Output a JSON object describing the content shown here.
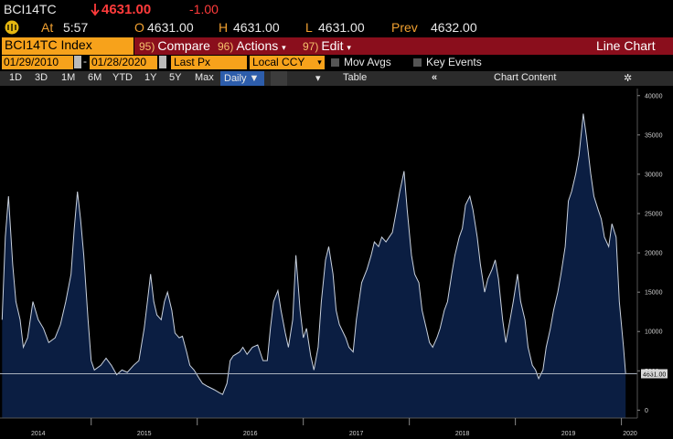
{
  "header": {
    "ticker": "BCI14TC",
    "price": "4631.00",
    "change": "-1.00",
    "time_label": "At",
    "time": "5:57",
    "open_label": "O",
    "open": "4631.00",
    "high_label": "H",
    "high": "4631.00",
    "low_label": "L",
    "low": "4631.00",
    "prev_label": "Prev",
    "prev": "4632.00"
  },
  "toolbar": {
    "security": "BCI14TC Index",
    "buttons": [
      {
        "key": "95)",
        "label": "Compare"
      },
      {
        "key": "96)",
        "label": "Actions"
      },
      {
        "key": "97)",
        "label": "Edit"
      }
    ],
    "view": "Line Chart"
  },
  "range": {
    "start": "01/29/2010",
    "separator": "-",
    "end": "01/28/2020",
    "field": "Last Px",
    "currency": "Local CCY",
    "mov_avgs": "Mov Avgs",
    "key_events": "Key Events"
  },
  "periods": [
    "1D",
    "3D",
    "1M",
    "6M",
    "YTD",
    "1Y",
    "5Y",
    "Max"
  ],
  "frequency": "Daily",
  "table": "Table",
  "chart_content": "Chart Content",
  "chart_data": {
    "type": "area",
    "x": [
      2014.16,
      2014.19,
      2014.22,
      2014.26,
      2014.29,
      2014.33,
      2014.36,
      2014.4,
      2014.45,
      2014.5,
      2014.55,
      2014.6,
      2014.66,
      2014.71,
      2014.76,
      2014.81,
      2014.84,
      2014.87,
      2014.9,
      2014.93,
      2014.97,
      2015.0,
      2015.03,
      2015.09,
      2015.14,
      2015.19,
      2015.24,
      2015.29,
      2015.34,
      2015.4,
      2015.45,
      2015.5,
      2015.53,
      2015.56,
      2015.59,
      2015.62,
      2015.66,
      2015.69,
      2015.72,
      2015.76,
      2015.79,
      2015.83,
      2015.86,
      2015.9,
      2015.93,
      2015.97,
      2016.02,
      2016.05,
      2016.1,
      2016.16,
      2016.21,
      2016.24,
      2016.28,
      2016.31,
      2016.34,
      2016.4,
      2016.43,
      2016.47,
      2016.52,
      2016.57,
      2016.62,
      2016.66,
      2016.69,
      2016.72,
      2016.76,
      2016.79,
      2016.83,
      2016.86,
      2016.9,
      2016.93,
      2016.97,
      2017.0,
      2017.03,
      2017.07,
      2017.1,
      2017.14,
      2017.17,
      2017.21,
      2017.24,
      2017.28,
      2017.31,
      2017.34,
      2017.4,
      2017.43,
      2017.47,
      2017.5,
      2017.55,
      2017.6,
      2017.64,
      2017.67,
      2017.71,
      2017.74,
      2017.78,
      2017.81,
      2017.84,
      2017.88,
      2017.91,
      2017.95,
      2017.98,
      2018.02,
      2018.05,
      2018.09,
      2018.12,
      2018.16,
      2018.19,
      2018.22,
      2018.26,
      2018.29,
      2018.33,
      2018.36,
      2018.4,
      2018.43,
      2018.47,
      2018.5,
      2018.53,
      2018.57,
      2018.6,
      2018.64,
      2018.67,
      2018.71,
      2018.74,
      2018.78,
      2018.81,
      2018.84,
      2018.88,
      2018.91,
      2018.95,
      2018.98,
      2019.02,
      2019.05,
      2019.09,
      2019.12,
      2019.16,
      2019.19,
      2019.22,
      2019.26,
      2019.29,
      2019.33,
      2019.36,
      2019.4,
      2019.43,
      2019.47,
      2019.5,
      2019.53,
      2019.57,
      2019.6,
      2019.64,
      2019.67,
      2019.71,
      2019.74,
      2019.78,
      2019.81,
      2019.84,
      2019.88,
      2019.91,
      2019.95,
      2019.98,
      2020.02,
      2020.04
    ],
    "series": [
      {
        "name": "BCI14TC Index",
        "color": "#c9d1dd",
        "fill": "#0b1e42",
        "values": [
          11500,
          22000,
          27200,
          18500,
          13800,
          11500,
          8000,
          9200,
          13800,
          11500,
          10400,
          8600,
          9200,
          10900,
          13800,
          17300,
          23100,
          27800,
          24300,
          19700,
          11500,
          6300,
          5100,
          5700,
          6600,
          5700,
          4500,
          5100,
          4800,
          5700,
          6300,
          10400,
          13800,
          17300,
          13800,
          12100,
          11500,
          13800,
          15000,
          12700,
          9800,
          9200,
          9400,
          7400,
          5700,
          5100,
          4000,
          3400,
          3000,
          2600,
          2200,
          2000,
          3400,
          6300,
          6900,
          7400,
          8000,
          7100,
          8000,
          8300,
          6300,
          6300,
          10400,
          13800,
          15200,
          12700,
          9800,
          8000,
          11500,
          19700,
          12700,
          9200,
          10400,
          6900,
          5100,
          8000,
          13800,
          19100,
          20800,
          17300,
          12700,
          10900,
          9200,
          8000,
          7400,
          11500,
          16200,
          17900,
          19700,
          21400,
          20800,
          22000,
          21400,
          22000,
          22600,
          25500,
          27800,
          30400,
          25500,
          19700,
          17300,
          16200,
          12700,
          10400,
          8600,
          8000,
          9200,
          10400,
          12700,
          13800,
          17300,
          19700,
          22000,
          23100,
          26100,
          27200,
          25500,
          22000,
          18500,
          15000,
          16700,
          17900,
          19100,
          16700,
          11500,
          8600,
          11500,
          13800,
          17300,
          13800,
          11500,
          8000,
          5700,
          5100,
          4000,
          5100,
          8000,
          10400,
          12700,
          15000,
          17300,
          20800,
          26600,
          27800,
          30100,
          32400,
          37700,
          34800,
          30100,
          27200,
          25500,
          24300,
          22000,
          20800,
          23700,
          22000,
          13800,
          8000,
          4631
        ]
      }
    ],
    "last_label": "4631.00",
    "xlim": [
      2014.14,
      2020.15
    ],
    "xticks": [
      2014,
      2015,
      2016,
      2017,
      2018,
      2019,
      2020
    ],
    "ylim": [
      -1000,
      40900
    ],
    "yticks": [
      0,
      5000,
      10000,
      15000,
      20000,
      25000,
      30000,
      35000,
      40000
    ]
  }
}
